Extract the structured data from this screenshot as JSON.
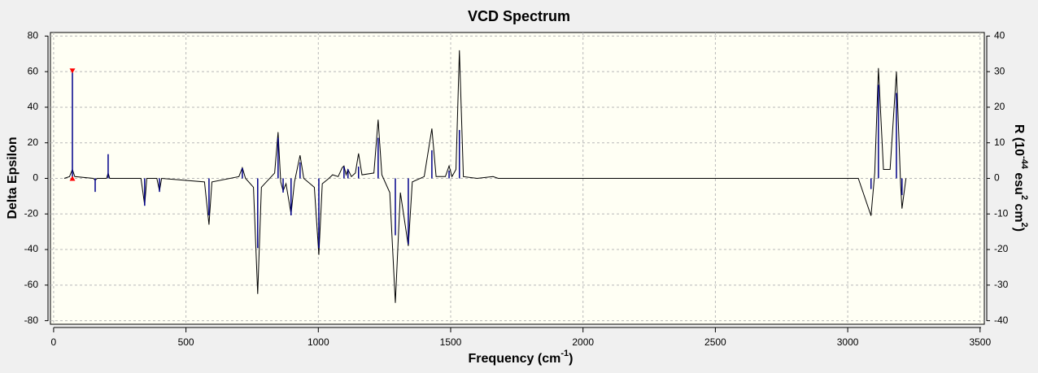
{
  "chart_data": {
    "type": "line",
    "title": "VCD Spectrum",
    "xlabel": [
      {
        "text": "Frequency (cm"
      },
      {
        "text": "-1",
        "sup": true
      },
      {
        "text": ")"
      }
    ],
    "ylabel": [
      {
        "text": "Delta Epsilon"
      }
    ],
    "y2label": [
      {
        "text": "R (10"
      },
      {
        "text": "-44",
        "sup": true
      },
      {
        "text": " esu"
      },
      {
        "text": "2",
        "sup": true
      },
      {
        "text": " cm"
      },
      {
        "text": "2",
        "sup": true
      },
      {
        "text": ")"
      }
    ],
    "xlim": [
      -12,
      3516
    ],
    "ylim": [
      -82,
      82
    ],
    "y2lim": [
      -41,
      41
    ],
    "xticks": [
      0,
      500,
      1000,
      1500,
      2000,
      2500,
      3000,
      3500
    ],
    "yticks": [
      -80,
      -60,
      -40,
      -20,
      0,
      20,
      40,
      60,
      80
    ],
    "y2ticks": [
      -40,
      -30,
      -20,
      -10,
      0,
      10,
      20,
      30,
      40
    ],
    "grid": true,
    "series": [
      {
        "color": "#000000",
        "x": [
          40,
          60,
          71,
          80,
          150,
          157,
          165,
          200,
          206,
          212,
          330,
          344,
          352,
          390,
          400,
          408,
          570,
          587,
          598,
          700,
          713,
          725,
          755,
          771,
          785,
          835,
          848,
          858,
          867,
          878,
          897,
          910,
          931,
          945,
          985,
          1002,
          1015,
          1040,
          1054,
          1075,
          1090,
          1097,
          1105,
          1112,
          1125,
          1140,
          1152,
          1165,
          1210,
          1226,
          1240,
          1270,
          1291,
          1310,
          1340,
          1355,
          1400,
          1429,
          1445,
          1480,
          1494,
          1505,
          1520,
          1533,
          1548,
          1600,
          1660,
          1680,
          3040,
          3088,
          3102,
          3116,
          3135,
          3160,
          3184,
          3200,
          3205,
          3220
        ],
        "values": [
          0,
          1,
          5,
          1,
          0,
          -1,
          0,
          0,
          3,
          0,
          0,
          -15,
          0,
          0,
          -7,
          0,
          -2,
          -26,
          -2,
          1,
          6,
          0,
          -5,
          -65,
          -5,
          3,
          26,
          -2,
          -7,
          -3,
          -20,
          -2,
          13,
          0,
          -5,
          -43,
          -3,
          0,
          2,
          1,
          6,
          7,
          2,
          5,
          1,
          3,
          14,
          2,
          3,
          33,
          2,
          -8,
          -70,
          -8,
          -38,
          -2,
          1,
          28,
          1,
          1,
          7,
          1,
          5,
          72,
          1,
          0,
          1,
          0,
          0,
          -21,
          3,
          62,
          5,
          5,
          60,
          -4,
          -17,
          0
        ]
      },
      {
        "color": "#00008b",
        "axis": "y2",
        "style": "sticks",
        "x": [
          71,
          157,
          206,
          344,
          400,
          587,
          713,
          771,
          848,
          867,
          897,
          931,
          1002,
          1097,
          1112,
          1152,
          1226,
          1291,
          1340,
          1429,
          1494,
          1533,
          3088,
          3116,
          3184,
          3205
        ],
        "values": [
          30.2,
          -3.8,
          6.8,
          -7.7,
          -3.8,
          -10.4,
          2.9,
          -19.6,
          11.4,
          -4,
          -10.4,
          4.5,
          -19.6,
          3.3,
          2.6,
          3.3,
          11.4,
          -16,
          -18.5,
          7.9,
          2.2,
          13.6,
          -3,
          26.3,
          24,
          -4.7
        ]
      }
    ]
  }
}
